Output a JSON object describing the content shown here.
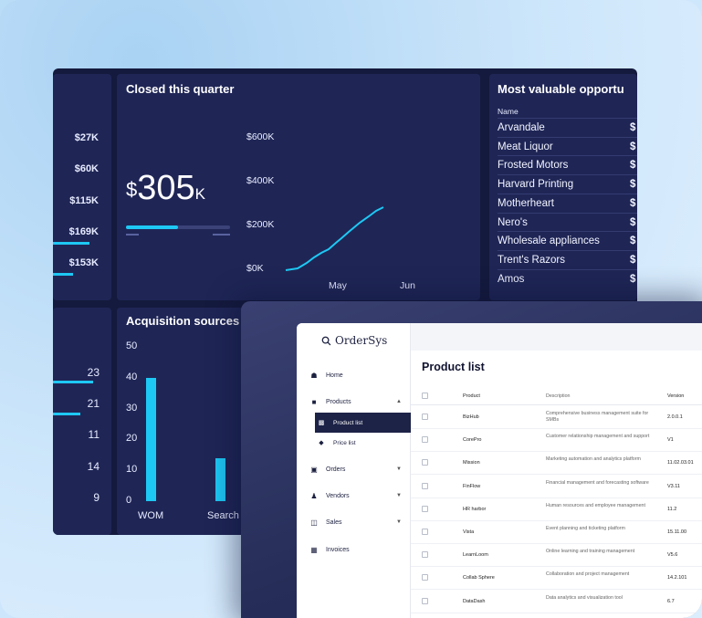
{
  "revenue_panel": {
    "ticks": [
      "$27K",
      "$60K",
      "$115K",
      "$169K",
      "$153K"
    ]
  },
  "closed_quarter": {
    "title": "Closed this quarter",
    "amount_prefix": "$",
    "amount": "305",
    "amount_suffix": "K",
    "progress_fraction": 0.5,
    "y_ticks": [
      "$600K",
      "$400K",
      "$200K",
      "$0K"
    ],
    "x_ticks": [
      "May",
      "Jun"
    ]
  },
  "opportunities": {
    "title": "Most valuable opportu",
    "column_header": "Name",
    "value_prefix": "$",
    "rows": [
      "Arvandale",
      "Meat Liquor",
      "Frosted Motors",
      "Harvard Printing",
      "Motherheart",
      "Nero's",
      "Wholesale appliances",
      "Trent's Razors",
      "Amos"
    ]
  },
  "left_bars_panel": {
    "values": [
      "23",
      "21",
      "11",
      "14",
      "9"
    ]
  },
  "acquisition": {
    "title": "Acquisition sources",
    "y_ticks": [
      "50",
      "40",
      "30",
      "20",
      "10",
      "0"
    ],
    "categories": [
      "WOM",
      "Search"
    ],
    "values": [
      40,
      14
    ],
    "ylim": [
      0,
      50
    ]
  },
  "app": {
    "logo": "OrderSys",
    "nav": {
      "home": "Home",
      "products": "Products",
      "product_list": "Product list",
      "price_list": "Price list",
      "orders": "Orders",
      "vendors": "Vendors",
      "sales": "Sales",
      "invoices": "Invoices"
    },
    "page_title": "Product list",
    "columns": {
      "product": "Product",
      "description": "Description",
      "version": "Version"
    },
    "rows": [
      {
        "product": "BizHub",
        "description": "Comprehensive business management suite for SMBs",
        "version": "2.0.0.1"
      },
      {
        "product": "CorePro",
        "description": "Customer relationship management and support",
        "version": "V1"
      },
      {
        "product": "Mission",
        "description": "Marketing automation and analytics platform",
        "version": "11.02.03.01"
      },
      {
        "product": "FinFlow",
        "description": "Financial management and forecasting software",
        "version": "V3.11"
      },
      {
        "product": "HR harbor",
        "description": "Human resources and employee management",
        "version": "11.2"
      },
      {
        "product": "Vista",
        "description": "Event planning and ticketing platform",
        "version": "15.11.00"
      },
      {
        "product": "LearnLoom",
        "description": "Online learning and training management",
        "version": "V5.6"
      },
      {
        "product": "Collab Sphere",
        "description": "Collaboration and project management",
        "version": "14.2.101"
      },
      {
        "product": "DataDash",
        "description": "Data analytics and visualization tool",
        "version": "6.7"
      }
    ]
  },
  "colors": {
    "dashboard_bg": "#141a3d",
    "panel_bg": "#1f2656",
    "accent": "#1ec8f4"
  }
}
